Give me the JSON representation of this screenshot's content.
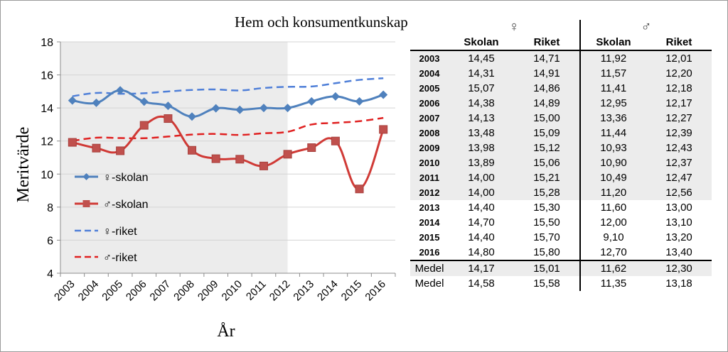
{
  "chart_data": {
    "type": "line",
    "title": "Hem och konsumentkunskap",
    "xlabel": "År",
    "ylabel": "Meritvärde",
    "ylim": [
      4,
      18
    ],
    "yticks": [
      4,
      6,
      8,
      10,
      12,
      14,
      16,
      18
    ],
    "categories": [
      "2003",
      "2004",
      "2005",
      "2006",
      "2007",
      "2008",
      "2009",
      "2010",
      "2011",
      "2012",
      "2013",
      "2014",
      "2015",
      "2016"
    ],
    "shaded_range": [
      "2003",
      "2012"
    ],
    "grid": true,
    "legend_position": "left-inside",
    "series": [
      {
        "name": "♀-skolan",
        "style": "solid-diamond",
        "color": "#4f81bd",
        "values": [
          14.45,
          14.31,
          15.07,
          14.38,
          14.13,
          13.48,
          13.98,
          13.89,
          14.0,
          14.0,
          14.4,
          14.7,
          14.4,
          14.8
        ]
      },
      {
        "name": "♂-skolan",
        "style": "solid-square",
        "color": "#d03a36",
        "values": [
          11.92,
          11.57,
          11.41,
          12.95,
          13.36,
          11.44,
          10.93,
          10.9,
          10.49,
          11.2,
          11.6,
          12.0,
          9.1,
          12.7
        ]
      },
      {
        "name": "♀-riket",
        "style": "dashed",
        "color": "#4f7fd8",
        "values": [
          14.71,
          14.91,
          14.86,
          14.89,
          15.0,
          15.09,
          15.12,
          15.06,
          15.21,
          15.28,
          15.3,
          15.5,
          15.7,
          15.8
        ]
      },
      {
        "name": "♂-riket",
        "style": "dashed",
        "color": "#e02020",
        "values": [
          12.01,
          12.2,
          12.18,
          12.17,
          12.27,
          12.39,
          12.43,
          12.37,
          12.47,
          12.56,
          13.0,
          13.1,
          13.2,
          13.4
        ]
      }
    ]
  },
  "table": {
    "female_symbol": "♀",
    "male_symbol": "♂",
    "col_labels": [
      "Skolan",
      "Riket",
      "Skolan",
      "Riket"
    ],
    "rows": [
      {
        "year": "2003",
        "fs": "14,45",
        "fr": "14,71",
        "ms": "11,92",
        "mr": "12,01"
      },
      {
        "year": "2004",
        "fs": "14,31",
        "fr": "14,91",
        "ms": "11,57",
        "mr": "12,20"
      },
      {
        "year": "2005",
        "fs": "15,07",
        "fr": "14,86",
        "ms": "11,41",
        "mr": "12,18"
      },
      {
        "year": "2006",
        "fs": "14,38",
        "fr": "14,89",
        "ms": "12,95",
        "mr": "12,17"
      },
      {
        "year": "2007",
        "fs": "14,13",
        "fr": "15,00",
        "ms": "13,36",
        "mr": "12,27"
      },
      {
        "year": "2008",
        "fs": "13,48",
        "fr": "15,09",
        "ms": "11,44",
        "mr": "12,39"
      },
      {
        "year": "2009",
        "fs": "13,98",
        "fr": "15,12",
        "ms": "10,93",
        "mr": "12,43"
      },
      {
        "year": "2010",
        "fs": "13,89",
        "fr": "15,06",
        "ms": "10,90",
        "mr": "12,37"
      },
      {
        "year": "2011",
        "fs": "14,00",
        "fr": "15,21",
        "ms": "10,49",
        "mr": "12,47"
      },
      {
        "year": "2012",
        "fs": "14,00",
        "fr": "15,28",
        "ms": "11,20",
        "mr": "12,56"
      },
      {
        "year": "2013",
        "fs": "14,40",
        "fr": "15,30",
        "ms": "11,60",
        "mr": "13,00"
      },
      {
        "year": "2014",
        "fs": "14,70",
        "fr": "15,50",
        "ms": "12,00",
        "mr": "13,10"
      },
      {
        "year": "2015",
        "fs": "14,40",
        "fr": "15,70",
        "ms": "9,10",
        "mr": "13,20"
      },
      {
        "year": "2016",
        "fs": "14,80",
        "fr": "15,80",
        "ms": "12,70",
        "mr": "13,40"
      }
    ],
    "medel": [
      {
        "label": "Medel",
        "fs": "14,17",
        "fr": "15,01",
        "ms": "11,62",
        "mr": "12,30"
      },
      {
        "label": "Medel",
        "fs": "14,58",
        "fr": "15,58",
        "ms": "11,35",
        "mr": "13,18"
      }
    ]
  }
}
